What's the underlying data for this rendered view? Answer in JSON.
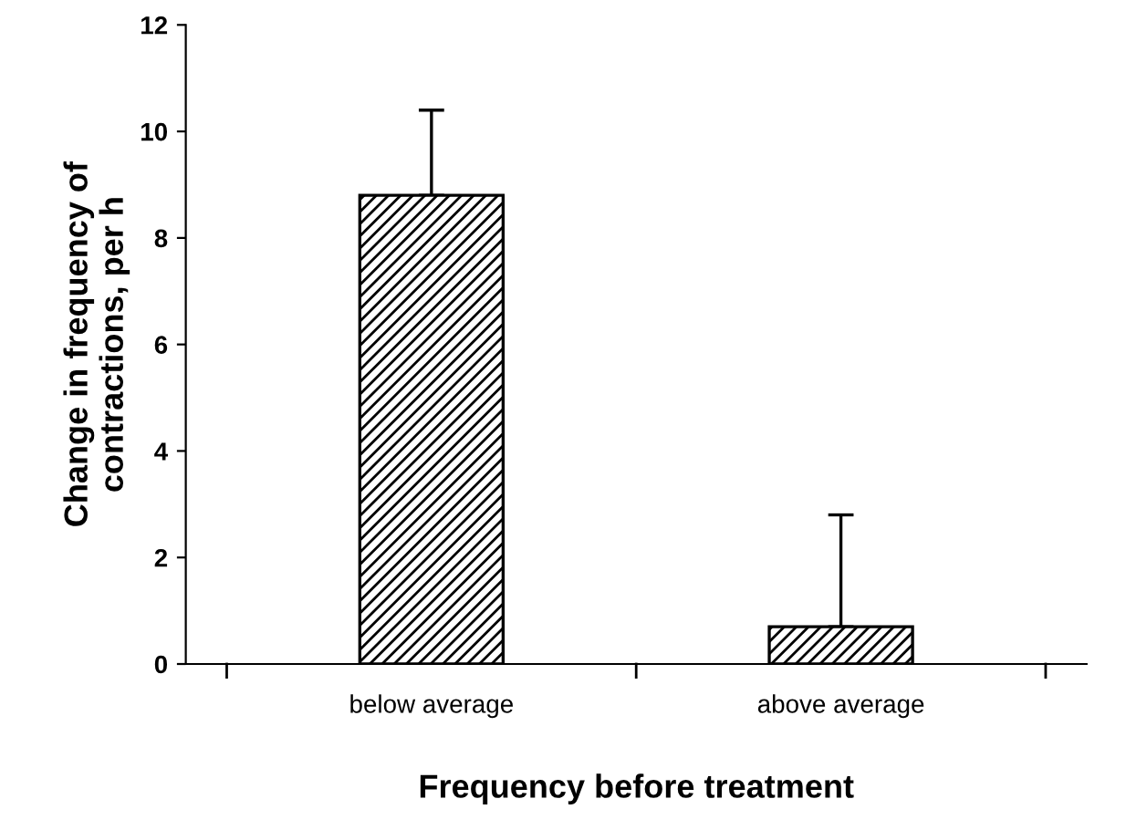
{
  "chart_data": {
    "type": "bar",
    "xlabel": "Frequency before treatment",
    "ylabel": "Change in frequency of\ncontractions, per h",
    "categories": [
      "below average",
      "above average"
    ],
    "series": [
      {
        "color": "#000000",
        "values": [
          8.8,
          0.7
        ],
        "errors": [
          [
            8.8,
            10.4
          ],
          [
            0.7,
            2.8
          ]
        ]
      }
    ],
    "ylim": [
      0,
      12
    ],
    "yticks": [
      0,
      2,
      4,
      6,
      8,
      10,
      12
    ],
    "grid": false,
    "legend": false
  }
}
